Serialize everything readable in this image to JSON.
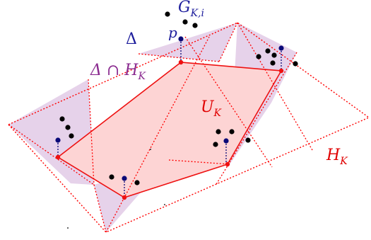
{
  "colors": {
    "plane_border": "#ff0000",
    "triangle_fill": "#e6d2ea",
    "hull_fill": "#fdd4d4",
    "hull_edge": "#ee1111",
    "point": "#000000",
    "lifted_point": "#0a0a78",
    "label_blue": "#1d1d9c",
    "label_purple": "#8a2a8f",
    "label_red": "#e00000"
  },
  "labels": {
    "g_base": "G",
    "g_sub": "K,i",
    "delta": "Δ",
    "p": "p",
    "delta_cap_base": "Δ ∩ H",
    "delta_cap_sub": "K",
    "u_base": "U",
    "u_sub": "K",
    "h_base": "H",
    "h_sub": "K"
  }
}
